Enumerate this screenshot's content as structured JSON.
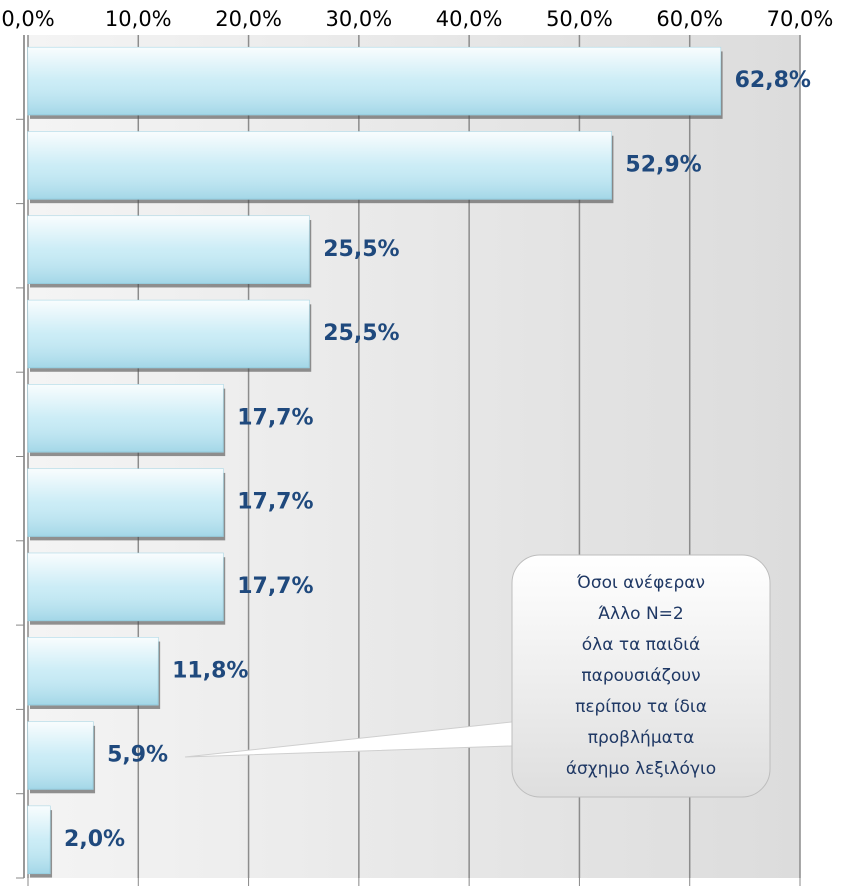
{
  "chart_data": {
    "type": "bar",
    "orientation": "horizontal",
    "values": [
      62.8,
      52.9,
      25.5,
      25.5,
      17.7,
      17.7,
      17.7,
      11.8,
      5.9,
      2.0
    ],
    "value_labels": [
      "62,8%",
      "52,9%",
      "25,5%",
      "25,5%",
      "17,7%",
      "17,7%",
      "17,7%",
      "11,8%",
      "5,9%",
      "2,0%"
    ],
    "color": "#bfe8f4",
    "xlim": [
      0,
      70
    ],
    "xticks": [
      {
        "value": 0,
        "label": "0,0%"
      },
      {
        "value": 10,
        "label": "10,0%"
      },
      {
        "value": 20,
        "label": "20,0%"
      },
      {
        "value": 30,
        "label": "30,0%"
      },
      {
        "value": 40,
        "label": "40,0%"
      },
      {
        "value": 50,
        "label": "50,0%"
      },
      {
        "value": 60,
        "label": "60,0%"
      },
      {
        "value": 70,
        "label": "70,0%"
      }
    ],
    "grid": true,
    "annotation": [
      "Όσοι ανέφεραν",
      "Άλλο Ν=2",
      "όλα τα παιδιά",
      "παρουσιάζουν",
      "περίπου τα ίδια",
      "προβλήματα",
      "άσχημο λεξιλόγιο"
    ]
  }
}
